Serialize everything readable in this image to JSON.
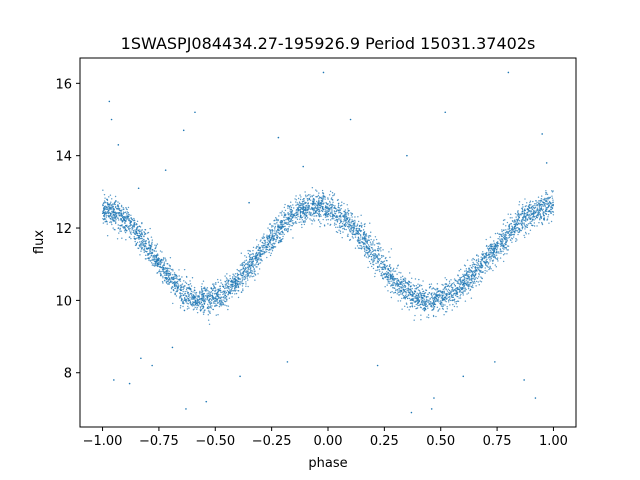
{
  "chart_data": {
    "type": "scatter",
    "title": "1SWASPJ084434.27-195926.9 Period 15031.37402s",
    "xlabel": "phase",
    "ylabel": "flux",
    "xlim": [
      -1.1,
      1.1
    ],
    "ylim": [
      6.5,
      16.7
    ],
    "xticks": [
      -1.0,
      -0.75,
      -0.5,
      -0.25,
      0.0,
      0.25,
      0.5,
      0.75,
      1.0
    ],
    "xtick_labels": [
      "−1.00",
      "−0.75",
      "−0.50",
      "−0.25",
      "0.00",
      "0.25",
      "0.50",
      "0.75",
      "1.00"
    ],
    "yticks": [
      8,
      10,
      12,
      14,
      16
    ],
    "ytick_labels": [
      "8",
      "10",
      "12",
      "14",
      "16"
    ],
    "grid": false,
    "point_color": "#1f77b4",
    "trend": {
      "description_points": [
        {
          "x": -1.0,
          "y": 12.5
        },
        {
          "x": -0.55,
          "y": 10.0
        },
        {
          "x": -0.05,
          "y": 12.6
        },
        {
          "x": 0.45,
          "y": 10.0
        },
        {
          "x": 1.0,
          "y": 12.6
        }
      ],
      "scatter_sigma": 0.2
    },
    "outliers": [
      {
        "x": -0.97,
        "y": 15.5
      },
      {
        "x": -0.96,
        "y": 15.0
      },
      {
        "x": -0.93,
        "y": 14.3
      },
      {
        "x": -0.84,
        "y": 13.1
      },
      {
        "x": -0.72,
        "y": 13.6
      },
      {
        "x": -0.64,
        "y": 14.7
      },
      {
        "x": -0.59,
        "y": 15.2
      },
      {
        "x": -0.35,
        "y": 12.7
      },
      {
        "x": -0.22,
        "y": 14.5
      },
      {
        "x": -0.11,
        "y": 13.7
      },
      {
        "x": -0.02,
        "y": 16.3
      },
      {
        "x": 0.1,
        "y": 15.0
      },
      {
        "x": 0.35,
        "y": 14.0
      },
      {
        "x": 0.52,
        "y": 15.2
      },
      {
        "x": 0.8,
        "y": 16.3
      },
      {
        "x": 0.95,
        "y": 14.6
      },
      {
        "x": 0.97,
        "y": 13.8
      },
      {
        "x": -0.95,
        "y": 7.8
      },
      {
        "x": -0.88,
        "y": 7.7
      },
      {
        "x": -0.83,
        "y": 8.4
      },
      {
        "x": -0.78,
        "y": 8.2
      },
      {
        "x": -0.69,
        "y": 8.7
      },
      {
        "x": -0.63,
        "y": 7.0
      },
      {
        "x": -0.54,
        "y": 7.2
      },
      {
        "x": -0.39,
        "y": 7.9
      },
      {
        "x": -0.18,
        "y": 8.3
      },
      {
        "x": 0.22,
        "y": 8.2
      },
      {
        "x": 0.37,
        "y": 6.9
      },
      {
        "x": 0.46,
        "y": 7.0
      },
      {
        "x": 0.47,
        "y": 7.3
      },
      {
        "x": 0.6,
        "y": 7.9
      },
      {
        "x": 0.74,
        "y": 8.3
      },
      {
        "x": 0.87,
        "y": 7.8
      },
      {
        "x": 0.92,
        "y": 7.3
      }
    ]
  }
}
